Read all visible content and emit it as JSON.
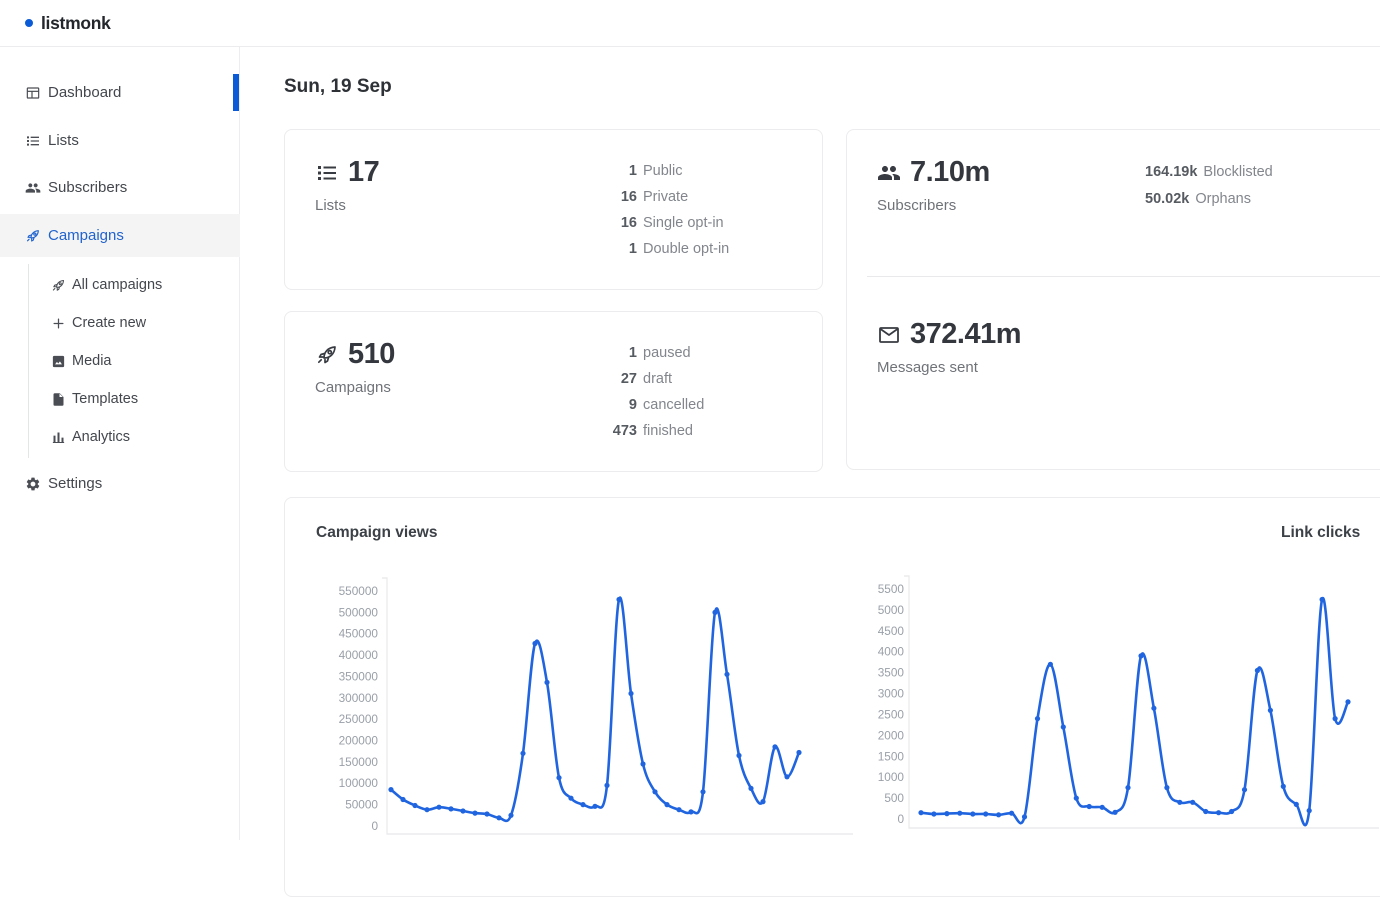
{
  "brand": {
    "name": "listmonk"
  },
  "page": {
    "date_heading": "Sun, 19 Sep"
  },
  "sidebar": {
    "dashboard": "Dashboard",
    "lists": "Lists",
    "subscribers": "Subscribers",
    "campaigns": "Campaigns",
    "submenu": {
      "all_campaigns": "All campaigns",
      "create_new": "Create new",
      "media": "Media",
      "templates": "Templates",
      "analytics": "Analytics"
    },
    "settings": "Settings"
  },
  "cards": {
    "lists": {
      "value": "17",
      "label": "Lists",
      "stats": [
        {
          "num": "1",
          "label": "Public"
        },
        {
          "num": "16",
          "label": "Private"
        },
        {
          "num": "16",
          "label": "Single opt-in"
        },
        {
          "num": "1",
          "label": "Double opt-in"
        }
      ]
    },
    "campaigns": {
      "value": "510",
      "label": "Campaigns",
      "stats": [
        {
          "num": "1",
          "label": "paused"
        },
        {
          "num": "27",
          "label": "draft"
        },
        {
          "num": "9",
          "label": "cancelled"
        },
        {
          "num": "473",
          "label": "finished"
        }
      ]
    },
    "subscribers": {
      "value": "7.10m",
      "label": "Subscribers",
      "stats": [
        {
          "num": "164.19k",
          "label": "Blocklisted"
        },
        {
          "num": "50.02k",
          "label": "Orphans"
        }
      ]
    },
    "messages": {
      "value": "372.41m",
      "label": "Messages sent"
    }
  },
  "chart_data": [
    {
      "type": "line",
      "title": "Campaign views",
      "xlabel": "",
      "ylabel": "",
      "ylim": [
        0,
        550000
      ],
      "y_tick_step": 50000,
      "grid": false,
      "legend": "none",
      "marker": "point",
      "series": [
        {
          "name": "Campaign views",
          "values": [
            85000,
            62000,
            48000,
            38000,
            44000,
            40000,
            35000,
            30000,
            28000,
            19000,
            25000,
            170000,
            427000,
            336000,
            113000,
            65000,
            50000,
            46000,
            95000,
            530000,
            310000,
            145000,
            80000,
            50000,
            38000,
            33000,
            80000,
            500000,
            355000,
            165000,
            88000,
            57000,
            185000,
            115000,
            172000
          ]
        }
      ]
    },
    {
      "type": "line",
      "title": "Link clicks",
      "xlabel": "",
      "ylabel": "",
      "ylim": [
        0,
        5500
      ],
      "y_tick_step": 500,
      "grid": false,
      "legend": "none",
      "marker": "point",
      "series": [
        {
          "name": "Link clicks",
          "values": [
            150,
            120,
            130,
            140,
            120,
            120,
            100,
            140,
            50,
            2400,
            3700,
            2200,
            500,
            300,
            280,
            160,
            750,
            3900,
            2650,
            750,
            400,
            400,
            180,
            150,
            180,
            700,
            3550,
            2600,
            780,
            350,
            200,
            5250,
            2400,
            2800
          ]
        }
      ]
    }
  ],
  "colors": {
    "primary": "#0c5bd6",
    "nav_active_text": "#2163cd",
    "chart_line": "#2065df",
    "sidebar_active_bg": "#f4f4f5",
    "card_border": "#ececee",
    "tick_label": "#9aa0a8",
    "axis_line": "#e8e8ea"
  }
}
